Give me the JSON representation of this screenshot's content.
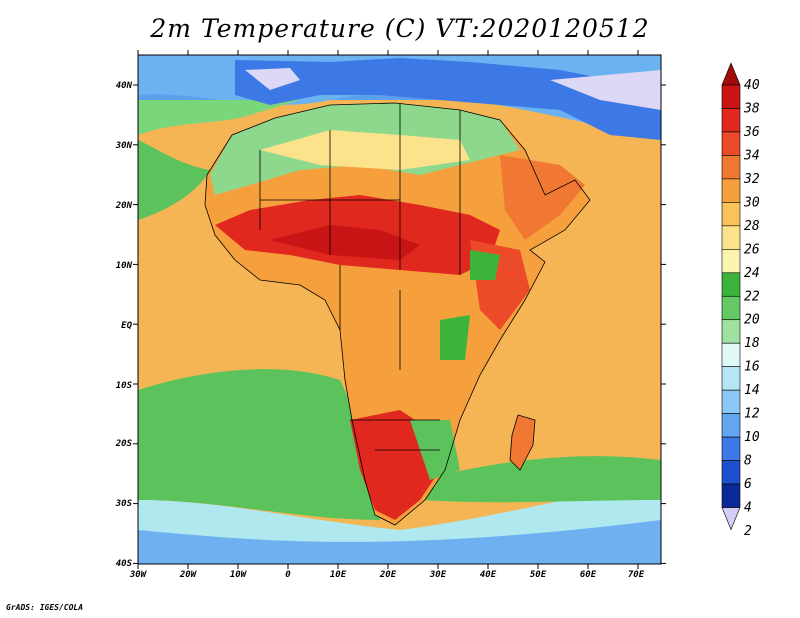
{
  "title": "2m Temperature (C) VT:2020120512",
  "credit": "GrADS: IGES/COLA",
  "map": {
    "lat_ticks": [
      "40N",
      "30N",
      "20N",
      "10N",
      "EQ",
      "10S",
      "20S",
      "30S",
      "40S"
    ],
    "lon_ticks": [
      "30W",
      "20W",
      "10W",
      "0",
      "10E",
      "20E",
      "30E",
      "40E",
      "50E",
      "60E",
      "70E"
    ]
  },
  "colorbar": {
    "labels": [
      "40",
      "38",
      "36",
      "34",
      "32",
      "30",
      "28",
      "26",
      "24",
      "22",
      "20",
      "18",
      "16",
      "14",
      "12",
      "10",
      "8",
      "6",
      "4",
      "2"
    ],
    "colors": [
      "#a50a0a",
      "#c81414",
      "#e0281e",
      "#eb4b28",
      "#f07832",
      "#f5a03c",
      "#fac35a",
      "#fde28c",
      "#fbf5b0",
      "#3cb43c",
      "#64c864",
      "#a0e0a0",
      "#e0f8f8",
      "#b4e6f5",
      "#8cc8f5",
      "#64a5f0",
      "#3c78e6",
      "#1e50cd",
      "#0a2896",
      "#d4d0f5"
    ]
  }
}
